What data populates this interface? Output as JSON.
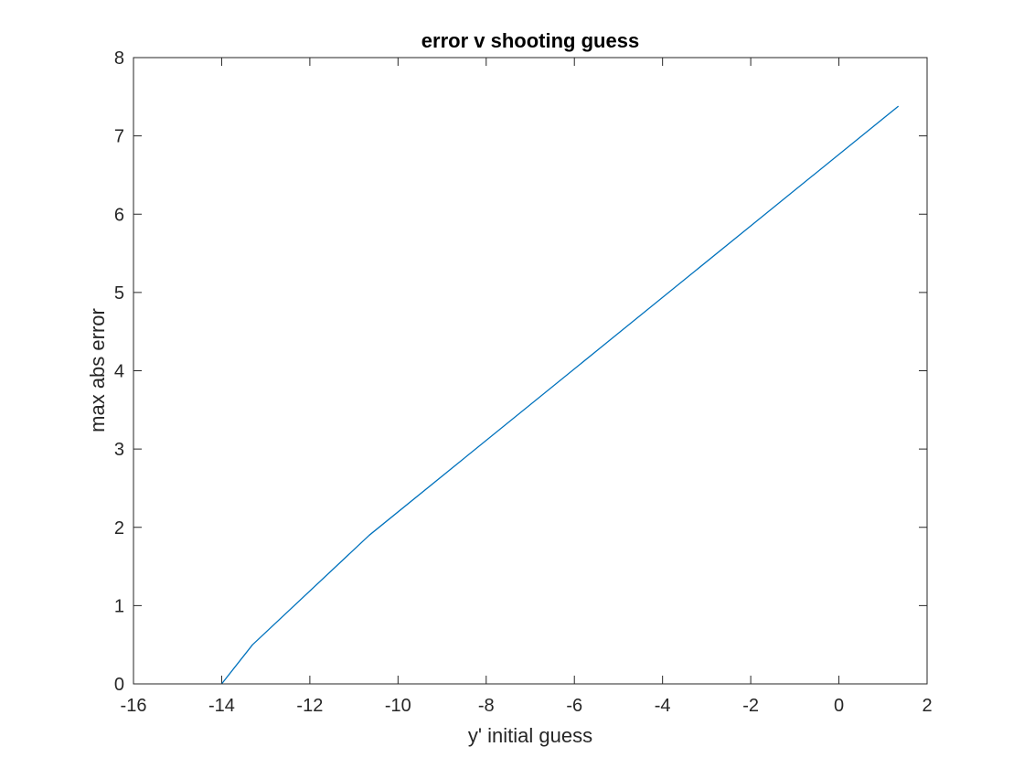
{
  "chart_data": {
    "type": "line",
    "title": "error v shooting guess",
    "xlabel": "y' initial guess",
    "ylabel": "max abs error",
    "xlim": [
      -16,
      2
    ],
    "ylim": [
      0,
      8
    ],
    "xticks": [
      -16,
      -14,
      -12,
      -10,
      -8,
      -6,
      -4,
      -2,
      0,
      2
    ],
    "yticks": [
      0,
      1,
      2,
      3,
      4,
      5,
      6,
      7,
      8
    ],
    "xtick_labels": [
      "-16",
      "-14",
      "-12",
      "-10",
      "-8",
      "-6",
      "-4",
      "-2",
      "0",
      "2"
    ],
    "ytick_labels": [
      "0",
      "1",
      "2",
      "3",
      "4",
      "5",
      "6",
      "7",
      "8"
    ],
    "grid": false,
    "box": true,
    "series": [
      {
        "color": "#0072BD",
        "x": [
          -14.0,
          -13.3,
          -10.65,
          1.35
        ],
        "y": [
          0.0,
          0.5,
          1.9,
          7.38
        ]
      }
    ]
  }
}
